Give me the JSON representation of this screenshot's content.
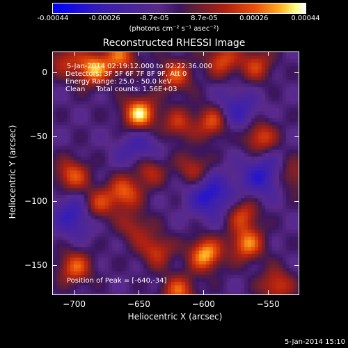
{
  "colorbar": {
    "ticks": [
      "-0.00044",
      "-0.00026",
      "-8.7e-05",
      "8.7e-05",
      "0.00026",
      "0.00044"
    ],
    "unit": "(photons cm⁻² s⁻¹ asec⁻²)"
  },
  "chart_data": {
    "type": "heatmap",
    "title": "Reconstructed RHESSI Image",
    "xlabel": "Heliocentric X (arcsec)",
    "ylabel": "Heliocentric Y (arcsec)",
    "xlim": [
      -717,
      -527
    ],
    "ylim": [
      -172,
      16
    ],
    "x_ticks": [
      -700,
      -650,
      -600,
      -550
    ],
    "y_ticks": [
      0,
      -50,
      -100,
      -150
    ],
    "colorbar_range": [
      -0.00044,
      0.00044
    ],
    "peak_position": [
      -640,
      -34
    ],
    "sources": [
      {
        "x": -650,
        "y": -32,
        "value": 0.00044
      },
      {
        "x": -686,
        "y": 3,
        "value": 0.00038
      },
      {
        "x": -665,
        "y": 12,
        "value": 0.0003
      },
      {
        "x": -622,
        "y": -2,
        "value": 0.00028
      },
      {
        "x": -586,
        "y": 10,
        "value": 0.00027
      },
      {
        "x": -560,
        "y": 6,
        "value": 0.00024
      },
      {
        "x": -593,
        "y": -38,
        "value": 0.00031
      },
      {
        "x": -557,
        "y": -50,
        "value": 0.00029
      },
      {
        "x": -643,
        "y": -75,
        "value": 0.00025
      },
      {
        "x": -702,
        "y": -80,
        "value": 0.0003
      },
      {
        "x": -662,
        "y": -93,
        "value": 0.00031
      },
      {
        "x": -683,
        "y": -103,
        "value": 0.00028
      },
      {
        "x": -608,
        "y": -75,
        "value": 0.00022
      },
      {
        "x": -570,
        "y": -110,
        "value": 0.00025
      },
      {
        "x": -599,
        "y": -141,
        "value": 0.0004
      },
      {
        "x": -567,
        "y": -133,
        "value": 0.00034
      },
      {
        "x": -700,
        "y": -151,
        "value": 0.0003
      },
      {
        "x": -637,
        "y": -138,
        "value": 0.00024
      },
      {
        "x": -654,
        "y": -120,
        "value": 0.00018
      },
      {
        "x": -620,
        "y": -170,
        "value": 0.0003
      },
      {
        "x": -544,
        "y": -165,
        "value": 0.00026
      },
      {
        "x": -532,
        "y": -80,
        "value": 0.0002
      },
      {
        "x": -708,
        "y": 10,
        "value": 0.0002
      },
      {
        "x": -620,
        "y": -40,
        "value": 0.00022
      },
      {
        "x": -700,
        "y": -110,
        "value": -0.00026
      },
      {
        "x": -595,
        "y": -95,
        "value": -0.0003
      },
      {
        "x": -555,
        "y": -80,
        "value": -0.00026
      },
      {
        "x": -650,
        "y": -60,
        "value": -0.0002
      },
      {
        "x": -575,
        "y": -30,
        "value": -0.00022
      }
    ]
  },
  "overlay": {
    "time_range": "5-Jan-2014 02:19:12.000 to 02:22:36.000",
    "detectors": "Detectors: 3F 5F 6F 7F 8F 9F, Att 0",
    "energy": "Energy Range: 25.0 - 50.0 keV",
    "clean": "Clean     Total counts: 1.56E+03",
    "peak": "Position of Peak = [-640,-34]"
  },
  "timestamp": "5-Jan-2014 15:10"
}
